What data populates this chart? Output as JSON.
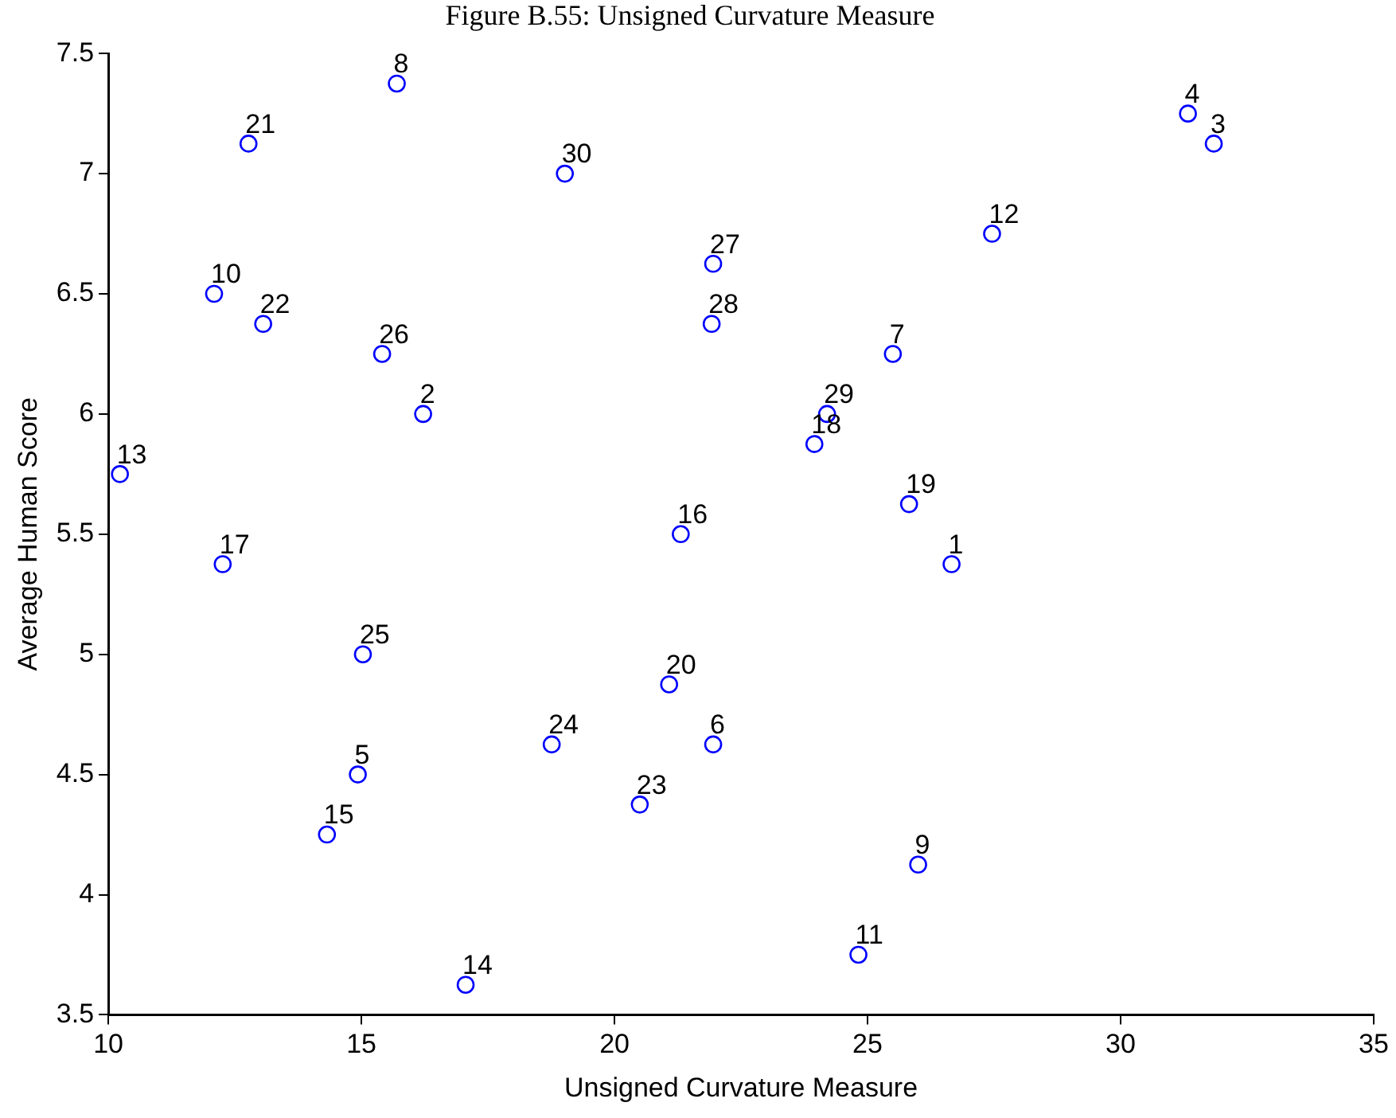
{
  "chart_data": {
    "type": "scatter",
    "title": "Figure B.55: Unsigned Curvature Measure",
    "xlabel": "Unsigned Curvature Measure",
    "ylabel": "Average Human Score",
    "x": [
      26.66,
      16.22,
      31.84,
      31.33,
      14.93,
      21.95,
      25.5,
      15.7,
      26.0,
      12.09,
      24.82,
      27.46,
      10.23,
      17.06,
      14.32,
      21.31,
      12.26,
      23.95,
      25.82,
      21.08,
      12.77,
      13.06,
      20.5,
      18.76,
      15.03,
      15.41,
      21.95,
      21.92,
      24.2,
      19.02
    ],
    "series": [
      {
        "color": "#0000ff",
        "values": [
          5.375,
          6.0,
          7.125,
          7.25,
          4.5,
          4.625,
          6.25,
          7.375,
          4.125,
          6.5,
          3.75,
          6.75,
          5.75,
          3.625,
          4.25,
          5.5,
          5.375,
          5.875,
          5.625,
          4.875,
          7.125,
          6.375,
          4.375,
          4.625,
          5.0,
          6.25,
          6.625,
          6.375,
          6.0,
          7.0
        ]
      }
    ],
    "annotations": [
      {
        "text": "1",
        "x": 26.66,
        "y": 5.375
      },
      {
        "text": "2",
        "x": 16.22,
        "y": 6.0
      },
      {
        "text": "3",
        "x": 31.84,
        "y": 7.125
      },
      {
        "text": "4",
        "x": 31.33,
        "y": 7.25
      },
      {
        "text": "5",
        "x": 14.93,
        "y": 4.5
      },
      {
        "text": "6",
        "x": 21.95,
        "y": 4.625
      },
      {
        "text": "7",
        "x": 25.5,
        "y": 6.25
      },
      {
        "text": "8",
        "x": 15.7,
        "y": 7.375
      },
      {
        "text": "9",
        "x": 26.0,
        "y": 4.125
      },
      {
        "text": "10",
        "x": 12.09,
        "y": 6.5
      },
      {
        "text": "11",
        "x": 24.82,
        "y": 3.75
      },
      {
        "text": "12",
        "x": 27.46,
        "y": 6.75
      },
      {
        "text": "13",
        "x": 10.23,
        "y": 5.75
      },
      {
        "text": "14",
        "x": 17.06,
        "y": 3.625
      },
      {
        "text": "15",
        "x": 14.32,
        "y": 4.25
      },
      {
        "text": "16",
        "x": 21.31,
        "y": 5.5
      },
      {
        "text": "17",
        "x": 12.26,
        "y": 5.375
      },
      {
        "text": "18",
        "x": 23.95,
        "y": 5.875
      },
      {
        "text": "19",
        "x": 25.82,
        "y": 5.625
      },
      {
        "text": "20",
        "x": 21.08,
        "y": 4.875
      },
      {
        "text": "21",
        "x": 12.77,
        "y": 7.125
      },
      {
        "text": "22",
        "x": 13.06,
        "y": 6.375
      },
      {
        "text": "23",
        "x": 20.5,
        "y": 4.375
      },
      {
        "text": "24",
        "x": 18.76,
        "y": 4.625
      },
      {
        "text": "25",
        "x": 15.03,
        "y": 5.0
      },
      {
        "text": "26",
        "x": 15.41,
        "y": 6.25
      },
      {
        "text": "27",
        "x": 21.95,
        "y": 6.625
      },
      {
        "text": "28",
        "x": 21.92,
        "y": 6.375
      },
      {
        "text": "29",
        "x": 24.2,
        "y": 6.0
      },
      {
        "text": "30",
        "x": 19.02,
        "y": 7.0
      }
    ],
    "xlim": [
      10,
      35
    ],
    "xticks": [
      10,
      15,
      20,
      25,
      30,
      35
    ],
    "ylim": [
      3.5,
      7.5
    ],
    "yticks": [
      3.5,
      4,
      4.5,
      5,
      5.5,
      6,
      6.5,
      7,
      7.5
    ],
    "marker": "circle",
    "grid": false,
    "legend": false
  }
}
